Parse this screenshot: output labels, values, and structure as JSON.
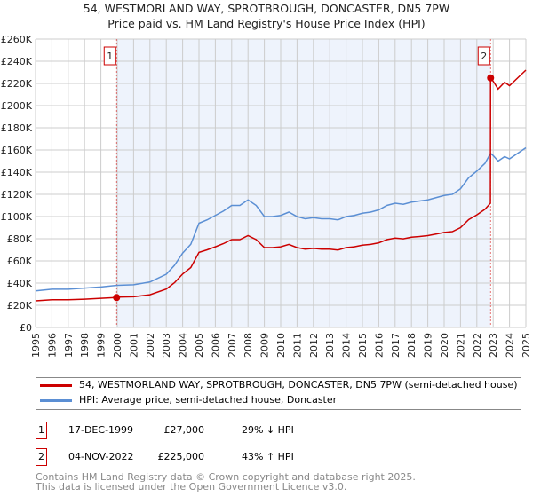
{
  "chart_data": {
    "type": "line",
    "title": "54, WESTMORLAND WAY, SPROTBROUGH, DONCASTER, DN5 7PW",
    "subtitle": "Price paid vs. HM Land Registry's House Price Index (HPI)",
    "xlim": [
      1995,
      2025
    ],
    "ylim": [
      0,
      260000
    ],
    "yticks": [
      "£0",
      "£20K",
      "£40K",
      "£60K",
      "£80K",
      "£100K",
      "£120K",
      "£140K",
      "£160K",
      "£180K",
      "£200K",
      "£220K",
      "£240K",
      "£260K"
    ],
    "xticks": [
      "1995",
      "1996",
      "1997",
      "1998",
      "1999",
      "2000",
      "2001",
      "2002",
      "2003",
      "2004",
      "2005",
      "2006",
      "2007",
      "2008",
      "2009",
      "2010",
      "2011",
      "2012",
      "2013",
      "2014",
      "2015",
      "2016",
      "2017",
      "2018",
      "2019",
      "2020",
      "2021",
      "2022",
      "2023",
      "2024",
      "2025"
    ],
    "grid": true,
    "series": [
      {
        "name": "54, WESTMORLAND WAY, SPROTBROUGH, DONCASTER, DN5 7PW (semi-detached house)",
        "color": "#cc0000",
        "points": [
          [
            1995,
            24
          ],
          [
            1996,
            25
          ],
          [
            1997,
            25
          ],
          [
            1998,
            25.5
          ],
          [
            1999,
            26.3
          ],
          [
            1999.96,
            27
          ],
          [
            2000,
            27.4
          ],
          [
            2001,
            27.7
          ],
          [
            2002,
            29.5
          ],
          [
            2003,
            34.6
          ],
          [
            2003.5,
            40.3
          ],
          [
            2004,
            48.2
          ],
          [
            2004.5,
            54
          ],
          [
            2005,
            67.7
          ],
          [
            2005.5,
            70
          ],
          [
            2006,
            72.7
          ],
          [
            2006.5,
            75.6
          ],
          [
            2007,
            79.2
          ],
          [
            2007.5,
            79.2
          ],
          [
            2008,
            82.8
          ],
          [
            2008.5,
            79.2
          ],
          [
            2009,
            72
          ],
          [
            2009.5,
            72
          ],
          [
            2010,
            72.7
          ],
          [
            2010.5,
            74.9
          ],
          [
            2011,
            72
          ],
          [
            2011.5,
            70.6
          ],
          [
            2012,
            71.3
          ],
          [
            2012.5,
            70.6
          ],
          [
            2013,
            70.6
          ],
          [
            2013.5,
            69.8
          ],
          [
            2014,
            72
          ],
          [
            2014.5,
            72.7
          ],
          [
            2015,
            74.2
          ],
          [
            2015.5,
            74.9
          ],
          [
            2016,
            76.3
          ],
          [
            2016.5,
            79.2
          ],
          [
            2017,
            80.6
          ],
          [
            2017.5,
            79.9
          ],
          [
            2018,
            81.4
          ],
          [
            2018.5,
            82
          ],
          [
            2019,
            82.8
          ],
          [
            2019.5,
            84.2
          ],
          [
            2020,
            85.7
          ],
          [
            2020.5,
            86.4
          ],
          [
            2021,
            90
          ],
          [
            2021.5,
            97.2
          ],
          [
            2022,
            101.5
          ],
          [
            2022.5,
            106.6
          ],
          [
            2022.83,
            112
          ],
          [
            2022.84,
            225
          ],
          [
            2023,
            222
          ],
          [
            2023.3,
            215
          ],
          [
            2023.7,
            221
          ],
          [
            2024,
            218
          ],
          [
            2024.5,
            225
          ],
          [
            2025,
            232
          ]
        ]
      },
      {
        "name": "HPI: Average price, semi-detached house, Doncaster",
        "color": "#5b8fd4",
        "points": [
          [
            1995,
            33
          ],
          [
            1996,
            34.5
          ],
          [
            1997,
            34.5
          ],
          [
            1998,
            35.5
          ],
          [
            1999,
            36.5
          ],
          [
            2000,
            38
          ],
          [
            2001,
            38.5
          ],
          [
            2002,
            41
          ],
          [
            2003,
            48
          ],
          [
            2003.5,
            56
          ],
          [
            2004,
            67
          ],
          [
            2004.5,
            75
          ],
          [
            2005,
            94
          ],
          [
            2005.5,
            97
          ],
          [
            2006,
            101
          ],
          [
            2006.5,
            105
          ],
          [
            2007,
            110
          ],
          [
            2007.5,
            110
          ],
          [
            2008,
            115
          ],
          [
            2008.5,
            110
          ],
          [
            2009,
            100
          ],
          [
            2009.5,
            100
          ],
          [
            2010,
            101
          ],
          [
            2010.5,
            104
          ],
          [
            2011,
            100
          ],
          [
            2011.5,
            98
          ],
          [
            2012,
            99
          ],
          [
            2012.5,
            98
          ],
          [
            2013,
            98
          ],
          [
            2013.5,
            97
          ],
          [
            2014,
            100
          ],
          [
            2014.5,
            101
          ],
          [
            2015,
            103
          ],
          [
            2015.5,
            104
          ],
          [
            2016,
            106
          ],
          [
            2016.5,
            110
          ],
          [
            2017,
            112
          ],
          [
            2017.5,
            111
          ],
          [
            2018,
            113
          ],
          [
            2018.5,
            114
          ],
          [
            2019,
            115
          ],
          [
            2019.5,
            117
          ],
          [
            2020,
            119
          ],
          [
            2020.5,
            120
          ],
          [
            2021,
            125
          ],
          [
            2021.5,
            135
          ],
          [
            2022,
            141
          ],
          [
            2022.5,
            148
          ],
          [
            2022.84,
            157
          ],
          [
            2023,
            155
          ],
          [
            2023.3,
            150
          ],
          [
            2023.7,
            154
          ],
          [
            2024,
            152
          ],
          [
            2024.5,
            157
          ],
          [
            2025,
            162
          ]
        ]
      }
    ],
    "y_units": "thousands GBP",
    "sales": [
      {
        "label": "1",
        "x": 1999.96,
        "y": 27,
        "date": "17-DEC-1999",
        "price": "£27,000",
        "hpi": "29% ↓ HPI"
      },
      {
        "label": "2",
        "x": 2022.84,
        "y": 225,
        "date": "04-NOV-2022",
        "price": "£225,000",
        "hpi": "43% ↑ HPI"
      }
    ],
    "legend_position": "bottom"
  },
  "footer": {
    "line1": "Contains HM Land Registry data © Crown copyright and database right 2025.",
    "line2": "This data is licensed under the Open Government Licence v3.0."
  }
}
